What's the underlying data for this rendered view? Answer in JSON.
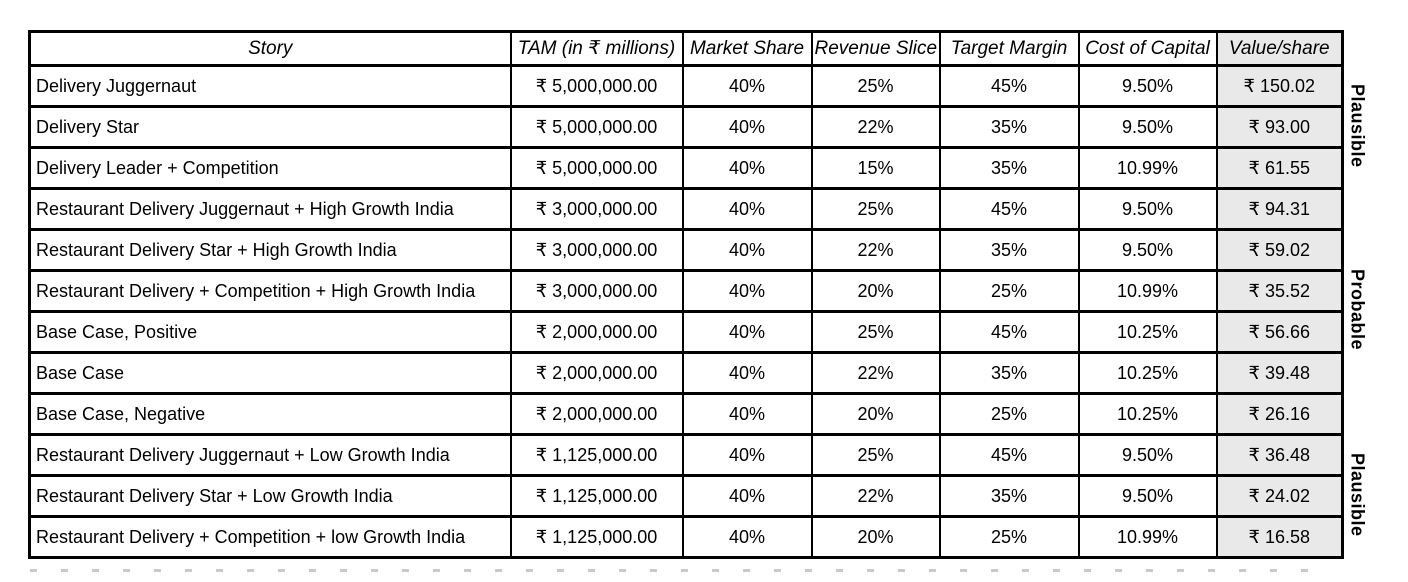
{
  "table": {
    "columns": [
      "Story",
      "TAM (in ₹ millions)",
      "Market Share",
      "Revenue Slice",
      "Target Margin",
      "Cost of Capital",
      "Value/share"
    ],
    "rows": [
      [
        "Delivery Juggernaut",
        "₹ 5,000,000.00",
        "40%",
        "25%",
        "45%",
        "9.50%",
        "₹ 150.02"
      ],
      [
        "Delivery Star",
        "₹ 5,000,000.00",
        "40%",
        "22%",
        "35%",
        "9.50%",
        "₹ 93.00"
      ],
      [
        "Delivery Leader + Competition",
        "₹ 5,000,000.00",
        "40%",
        "15%",
        "35%",
        "10.99%",
        "₹ 61.55"
      ],
      [
        "Restaurant Delivery Juggernaut + High Growth India",
        "₹ 3,000,000.00",
        "40%",
        "25%",
        "45%",
        "9.50%",
        "₹ 94.31"
      ],
      [
        "Restaurant Delivery Star + High Growth India",
        "₹ 3,000,000.00",
        "40%",
        "22%",
        "35%",
        "9.50%",
        "₹ 59.02"
      ],
      [
        "Restaurant Delivery + Competition  + High Growth India",
        "₹ 3,000,000.00",
        "40%",
        "20%",
        "25%",
        "10.99%",
        "₹ 35.52"
      ],
      [
        "Base Case, Positive",
        "₹ 2,000,000.00",
        "40%",
        "25%",
        "45%",
        "10.25%",
        "₹ 56.66"
      ],
      [
        "Base Case",
        "₹ 2,000,000.00",
        "40%",
        "22%",
        "35%",
        "10.25%",
        "₹ 39.48"
      ],
      [
        "Base Case, Negative",
        "₹ 2,000,000.00",
        "40%",
        "20%",
        "25%",
        "10.25%",
        "₹ 26.16"
      ],
      [
        "Restaurant Delivery Juggernaut + Low Growth India",
        "₹ 1,125,000.00",
        "40%",
        "25%",
        "45%",
        "9.50%",
        "₹ 36.48"
      ],
      [
        "Restaurant Delivery Star + Low Growth India",
        "₹ 1,125,000.00",
        "40%",
        "22%",
        "35%",
        "9.50%",
        "₹ 24.02"
      ],
      [
        "Restaurant Delivery + Competition  + low Growth India",
        "₹ 1,125,000.00",
        "40%",
        "20%",
        "25%",
        "10.99%",
        "₹ 16.58"
      ]
    ]
  },
  "groups": [
    {
      "label": "Plausible",
      "rows": "1-3"
    },
    {
      "label": "Probable",
      "rows": "4-9"
    },
    {
      "label": "Plausible",
      "rows": "10-12"
    }
  ],
  "colors": {
    "value_column_bg": "#e9e9e9",
    "border": "#000000",
    "page_break_dash": "#c9c9c9"
  }
}
